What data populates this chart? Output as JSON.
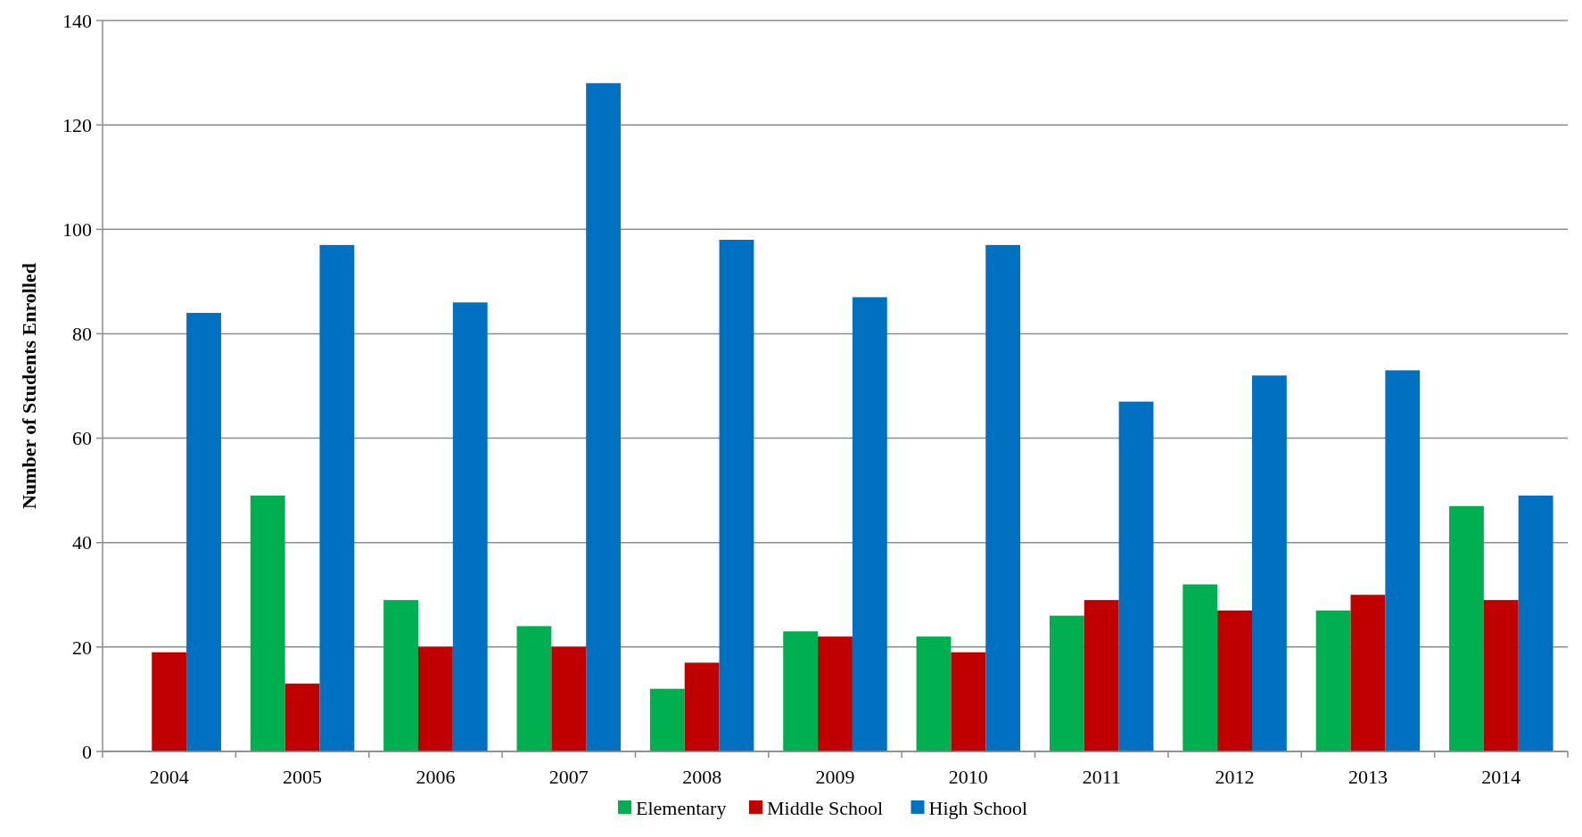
{
  "chart_data": {
    "type": "bar",
    "ylabel": "Number of Students Enrolled",
    "categories": [
      "2004",
      "2005",
      "2006",
      "2007",
      "2008",
      "2009",
      "2010",
      "2011",
      "2012",
      "2013",
      "2014"
    ],
    "series": [
      {
        "name": "Elementary",
        "color": "#00b050",
        "values": [
          0,
          49,
          29,
          24,
          12,
          23,
          22,
          26,
          32,
          27,
          47
        ]
      },
      {
        "name": "Middle School",
        "color": "#c00000",
        "values": [
          19,
          13,
          20,
          20,
          17,
          22,
          19,
          29,
          27,
          30,
          29
        ]
      },
      {
        "name": "High School",
        "color": "#0070c0",
        "values": [
          84,
          97,
          86,
          128,
          98,
          87,
          97,
          67,
          72,
          73,
          49
        ]
      }
    ],
    "ylim": [
      0,
      140
    ],
    "yticks": [
      0,
      20,
      40,
      60,
      80,
      100,
      120,
      140
    ],
    "grid": "y",
    "legend": "bottom"
  }
}
